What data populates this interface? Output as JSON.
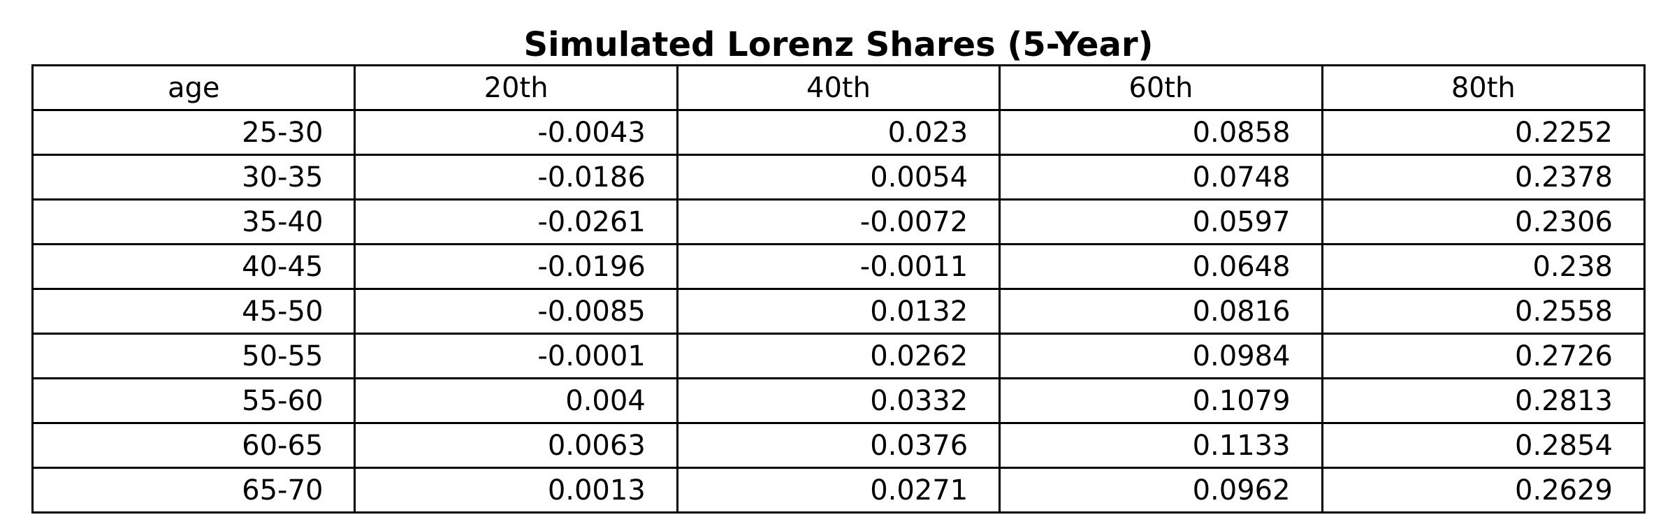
{
  "chart_data": {
    "type": "table",
    "title": "Simulated Lorenz Shares (5-Year)",
    "columns": [
      "age",
      "20th",
      "40th",
      "60th",
      "80th"
    ],
    "rows": [
      [
        "25-30",
        "-0.0043",
        "0.023",
        "0.0858",
        "0.2252"
      ],
      [
        "30-35",
        "-0.0186",
        "0.0054",
        "0.0748",
        "0.2378"
      ],
      [
        "35-40",
        "-0.0261",
        "-0.0072",
        "0.0597",
        "0.2306"
      ],
      [
        "40-45",
        "-0.0196",
        "-0.0011",
        "0.0648",
        "0.238"
      ],
      [
        "45-50",
        "-0.0085",
        "0.0132",
        "0.0816",
        "0.2558"
      ],
      [
        "50-55",
        "-0.0001",
        "0.0262",
        "0.0984",
        "0.2726"
      ],
      [
        "55-60",
        "0.004",
        "0.0332",
        "0.1079",
        "0.2813"
      ],
      [
        "60-65",
        "0.0063",
        "0.0376",
        "0.1133",
        "0.2854"
      ],
      [
        "65-70",
        "0.0013",
        "0.0271",
        "0.0962",
        "0.2629"
      ]
    ]
  }
}
